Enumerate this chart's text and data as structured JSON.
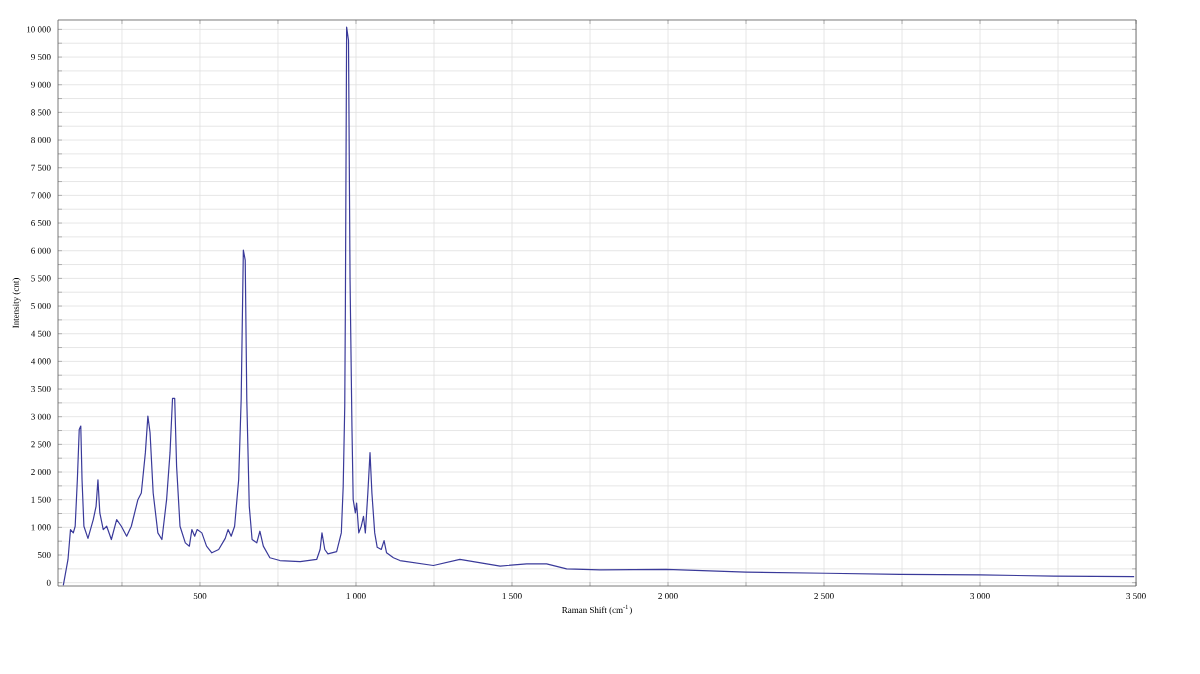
{
  "chart_data": {
    "type": "line",
    "xlabel": "Raman Shift (cm$^{-1}$)",
    "ylabel": "Intensity (cnt)",
    "color": "#3a3a9a",
    "grid": true,
    "marker": "none",
    "line_style": "solid",
    "xlim": [
      45,
      3500
    ],
    "ylim": [
      -60,
      10170
    ],
    "xticks": [
      {
        "value": 250,
        "label": null
      },
      {
        "value": 500,
        "label": "500"
      },
      {
        "value": 750,
        "label": null
      },
      {
        "value": 1000,
        "label": "1 000"
      },
      {
        "value": 1250,
        "label": null
      },
      {
        "value": 1500,
        "label": "1 500"
      },
      {
        "value": 1750,
        "label": null
      },
      {
        "value": 2000,
        "label": "2 000"
      },
      {
        "value": 2250,
        "label": null
      },
      {
        "value": 2500,
        "label": "2 500"
      },
      {
        "value": 2750,
        "label": null
      },
      {
        "value": 3000,
        "label": "3 000"
      },
      {
        "value": 3250,
        "label": null
      },
      {
        "value": 3500,
        "label": "3 500"
      }
    ],
    "yticks": [
      0,
      {
        "value": 250,
        "label": null
      },
      500,
      {
        "value": 750,
        "label": null
      },
      {
        "value": 1000,
        "label": "1 000"
      },
      {
        "value": 1250,
        "label": null
      },
      {
        "value": 1500,
        "label": "1 500"
      },
      {
        "value": 1750,
        "label": null
      },
      {
        "value": 2000,
        "label": "2 000"
      },
      {
        "value": 2250,
        "label": null
      },
      {
        "value": 2500,
        "label": "2 500"
      },
      {
        "value": 2750,
        "label": null
      },
      {
        "value": 3000,
        "label": "3 000"
      },
      {
        "value": 3250,
        "label": null
      },
      {
        "value": 3500,
        "label": "3 500"
      },
      {
        "value": 3750,
        "label": null
      },
      {
        "value": 4000,
        "label": "4 000"
      },
      {
        "value": 4250,
        "label": null
      },
      {
        "value": 4500,
        "label": "4 500"
      },
      {
        "value": 4750,
        "label": null
      },
      {
        "value": 5000,
        "label": "5 000"
      },
      {
        "value": 5250,
        "label": null
      },
      {
        "value": 5500,
        "label": "5 500"
      },
      {
        "value": 5750,
        "label": null
      },
      {
        "value": 6000,
        "label": "6 000"
      },
      {
        "value": 6250,
        "label": null
      },
      {
        "value": 6500,
        "label": "6 500"
      },
      {
        "value": 6750,
        "label": null
      },
      {
        "value": 7000,
        "label": "7 000"
      },
      {
        "value": 7250,
        "label": null
      },
      {
        "value": 7500,
        "label": "7 500"
      },
      {
        "value": 7750,
        "label": null
      },
      {
        "value": 8000,
        "label": "8 000"
      },
      {
        "value": 8250,
        "label": null
      },
      {
        "value": 8500,
        "label": "8 500"
      },
      {
        "value": 8750,
        "label": null
      },
      {
        "value": 9000,
        "label": "9 000"
      },
      {
        "value": 9250,
        "label": null
      },
      {
        "value": 9500,
        "label": "9 500"
      },
      {
        "value": 9750,
        "label": null
      },
      {
        "value": 10000,
        "label": "10 000"
      }
    ],
    "x": [
      62,
      77,
      85,
      94,
      100,
      107,
      113,
      118,
      122,
      128,
      141,
      158,
      167,
      173,
      179,
      190,
      201,
      216,
      233,
      248,
      265,
      280,
      301,
      312,
      325,
      333,
      340,
      350,
      365,
      378,
      393,
      404,
      412,
      419,
      425,
      436,
      453,
      466,
      474,
      483,
      491,
      506,
      521,
      538,
      560,
      581,
      590,
      600,
      611,
      624,
      632,
      639,
      645,
      650,
      658,
      667,
      682,
      692,
      703,
      724,
      756,
      821,
      874,
      885,
      891,
      900,
      910,
      938,
      953,
      959,
      964,
      966,
      970,
      976,
      981,
      987,
      991,
      998,
      1002,
      1009,
      1017,
      1024,
      1030,
      1038,
      1045,
      1051,
      1060,
      1068,
      1081,
      1090,
      1098,
      1120,
      1141,
      1248,
      1333,
      1376,
      1462,
      1547,
      1611,
      1675,
      1782,
      1994,
      2250,
      2506,
      2744,
      3000,
      3237,
      3494
    ],
    "values": [
      -50,
      420,
      960,
      900,
      1020,
      1860,
      2770,
      2830,
      1860,
      1020,
      800,
      1140,
      1380,
      1860,
      1260,
      960,
      1020,
      780,
      1140,
      1020,
      840,
      1020,
      1500,
      1620,
      2350,
      3010,
      2710,
      1620,
      900,
      780,
      1500,
      2350,
      3330,
      3330,
      2110,
      1020,
      720,
      660,
      960,
      840,
      960,
      900,
      660,
      540,
      600,
      800,
      960,
      840,
      1020,
      1860,
      3310,
      6010,
      5830,
      3310,
      1380,
      780,
      720,
      930,
      660,
      450,
      400,
      380,
      420,
      600,
      900,
      600,
      520,
      560,
      900,
      1740,
      3190,
      4990,
      10040,
      9800,
      5470,
      2830,
      1500,
      1260,
      1440,
      900,
      1020,
      1200,
      900,
      1620,
      2350,
      1620,
      900,
      640,
      600,
      760,
      540,
      450,
      400,
      310,
      420,
      380,
      300,
      340,
      340,
      250,
      230,
      240,
      190,
      170,
      150,
      140,
      120,
      110
    ]
  }
}
